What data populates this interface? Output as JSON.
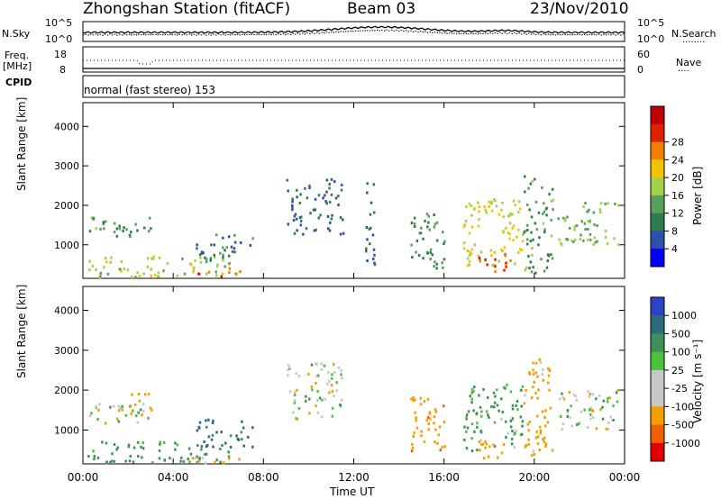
{
  "header": {
    "station": "Zhongshan Station (fitACF)",
    "beam": "Beam 03",
    "date": "23/Nov/2010"
  },
  "top_panel": {
    "left_label": "N.Sky",
    "right_label": "N.Search",
    "left_ticks": [
      "10^5",
      "10^0"
    ],
    "right_ticks": [
      "10^5",
      "10^0"
    ],
    "dotted_line_legend": "........"
  },
  "freq_panel": {
    "left_label_line1": "Freq.",
    "left_label_line2": "[MHz]",
    "right_label": "Nave",
    "left_ticks": [
      "18",
      "8"
    ],
    "right_ticks": [
      "60",
      "0"
    ],
    "dotted_line_legend": "...."
  },
  "cpid": {
    "label": "CPID",
    "mode": "normal (fast stereo) 153"
  },
  "colors": {
    "power_scale": [
      "#0000ff",
      "#2f4faf",
      "#2e7d4f",
      "#5a9f5a",
      "#a4d04a",
      "#f3c500",
      "#f08000",
      "#e02000",
      "#c00000"
    ],
    "velocity_scale": [
      "#2a44c8",
      "#2d6a7a",
      "#3e8f5a",
      "#4cc23c",
      "#c8c8c8",
      "#c8c8c8",
      "#f0a000",
      "#f06000",
      "#e00000"
    ]
  },
  "chart_data": [
    {
      "type": "heatmap",
      "name": "power",
      "ylabel": "Slant Range [km]",
      "ylim": [
        150,
        4600
      ],
      "yticks": [
        "1000",
        "2000",
        "3000",
        "4000"
      ],
      "colorbar": {
        "label": "Power [dB]",
        "ticks": [
          "4",
          "8",
          "12",
          "16",
          "20",
          "24",
          "28"
        ]
      },
      "xlim_hours": [
        0,
        24
      ],
      "scatter_regions": [
        {
          "t0": 0.2,
          "t1": 3.0,
          "r0": 1200,
          "r1": 1750,
          "value": 11
        },
        {
          "t0": 0.2,
          "t1": 6.5,
          "r0": 200,
          "r1": 750,
          "value": 16
        },
        {
          "t0": 4.8,
          "t1": 7.0,
          "r0": 200,
          "r1": 450,
          "value": 25
        },
        {
          "t0": 5.0,
          "t1": 7.5,
          "r0": 600,
          "r1": 1300,
          "value": 8
        },
        {
          "t0": 9.0,
          "t1": 11.5,
          "r0": 1300,
          "r1": 2700,
          "value": 6
        },
        {
          "t0": 12.5,
          "t1": 12.9,
          "r0": 300,
          "r1": 3100,
          "value": 6
        },
        {
          "t0": 14.5,
          "t1": 16.0,
          "r0": 400,
          "r1": 1900,
          "value": 10
        },
        {
          "t0": 16.8,
          "t1": 19.5,
          "r0": 500,
          "r1": 2200,
          "value": 18
        },
        {
          "t0": 17.5,
          "t1": 19.0,
          "r0": 300,
          "r1": 800,
          "value": 26
        },
        {
          "t0": 19.5,
          "t1": 20.8,
          "r0": 300,
          "r1": 2800,
          "value": 11
        },
        {
          "t0": 21.0,
          "t1": 23.7,
          "r0": 1000,
          "r1": 2100,
          "value": 14
        }
      ]
    },
    {
      "type": "heatmap",
      "name": "velocity",
      "ylabel": "Slant Range [km]",
      "ylim": [
        150,
        4600
      ],
      "yticks": [
        "1000",
        "2000",
        "3000",
        "4000"
      ],
      "xlabel": "Time UT",
      "xticks": [
        "00:00",
        "04:00",
        "08:00",
        "12:00",
        "16:00",
        "20:00",
        "00:00"
      ],
      "colorbar": {
        "label": "Velocity [m s⁻¹]",
        "ticks": [
          "1000",
          "500",
          "100",
          "25",
          "-25",
          "-100",
          "-500",
          "-1000"
        ]
      },
      "xlim_hours": [
        0,
        24
      ],
      "scatter_regions": [
        {
          "t0": 0.2,
          "t1": 3.0,
          "r0": 1200,
          "r1": 1750,
          "value": 0
        },
        {
          "t0": 2.0,
          "t1": 3.0,
          "r0": 1400,
          "r1": 2000,
          "value": -300
        },
        {
          "t0": 0.2,
          "t1": 6.5,
          "r0": 200,
          "r1": 750,
          "value": 200
        },
        {
          "t0": 4.8,
          "t1": 7.0,
          "r0": 200,
          "r1": 450,
          "value": -150
        },
        {
          "t0": 5.0,
          "t1": 7.5,
          "r0": 600,
          "r1": 1300,
          "value": 600
        },
        {
          "t0": 9.0,
          "t1": 11.5,
          "r0": 1300,
          "r1": 2700,
          "value": 0
        },
        {
          "t0": 14.5,
          "t1": 16.0,
          "r0": 400,
          "r1": 1900,
          "value": -400
        },
        {
          "t0": 16.8,
          "t1": 19.5,
          "r0": 500,
          "r1": 2200,
          "value": 150
        },
        {
          "t0": 17.5,
          "t1": 19.0,
          "r0": 300,
          "r1": 800,
          "value": -300
        },
        {
          "t0": 19.5,
          "t1": 20.8,
          "r0": 300,
          "r1": 2800,
          "value": -200
        },
        {
          "t0": 21.0,
          "t1": 23.7,
          "r0": 1000,
          "r1": 2100,
          "value": 0
        }
      ]
    }
  ]
}
